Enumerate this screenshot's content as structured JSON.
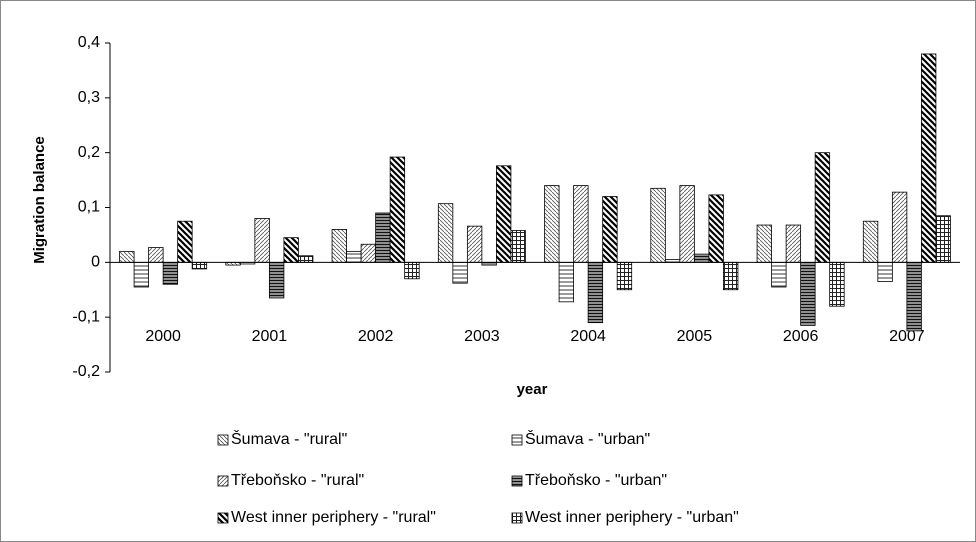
{
  "chart_data": {
    "type": "bar",
    "y_label": "Migration balance",
    "x_label": "year",
    "categories": [
      "2000",
      "2001",
      "2002",
      "2003",
      "2004",
      "2005",
      "2006",
      "2007"
    ],
    "series": [
      {
        "name": "Šumava - \"rural\"",
        "color": "#000000",
        "values": [
          0.02,
          -0.005,
          0.06,
          0.107,
          0.14,
          0.135,
          0.068,
          0.075
        ]
      },
      {
        "name": "Šumava - \"urban\"",
        "color": "#000000",
        "values": [
          -0.045,
          -0.003,
          0.02,
          -0.038,
          -0.072,
          0.005,
          -0.045,
          -0.035
        ]
      },
      {
        "name": "Třeboňsko - \"rural\"",
        "color": "#000000",
        "values": [
          0.027,
          0.08,
          0.033,
          0.066,
          0.14,
          0.14,
          0.068,
          0.128
        ]
      },
      {
        "name": "Třeboňsko - \"urban\"",
        "color": "#000000",
        "values": [
          -0.04,
          -0.065,
          0.09,
          -0.005,
          -0.11,
          0.015,
          -0.115,
          -0.125
        ]
      },
      {
        "name": "West inner periphery - \"rural\"",
        "color": "#000000",
        "values": [
          0.075,
          0.045,
          0.192,
          0.176,
          0.12,
          0.123,
          0.2,
          0.38
        ]
      },
      {
        "name": "West inner periphery - \"urban\"",
        "color": "#000000",
        "values": [
          -0.012,
          0.012,
          -0.03,
          0.058,
          -0.05,
          -0.05,
          -0.08,
          0.085
        ]
      }
    ],
    "ylim": [
      -0.2,
      0.4
    ],
    "yticks": [
      {
        "value": -0.2,
        "label": "-0,2"
      },
      {
        "value": -0.1,
        "label": "-0,1"
      },
      0,
      {
        "value": 0.1,
        "label": "0,1"
      },
      {
        "value": 0.2,
        "label": "0,2"
      },
      {
        "value": 0.3,
        "label": "0,3"
      },
      {
        "value": 0.4,
        "label": "0,4"
      }
    ],
    "grid": false
  }
}
